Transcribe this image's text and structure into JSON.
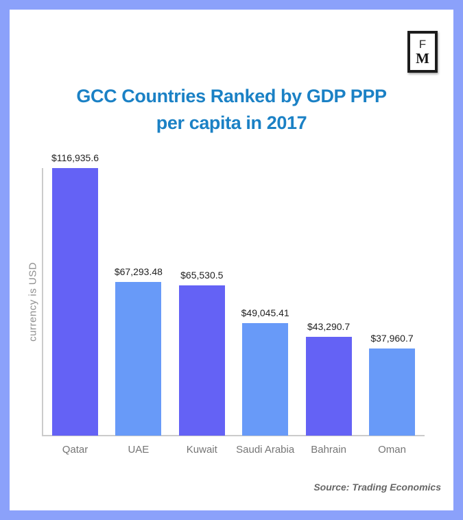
{
  "theme": {
    "frame_border": "#8ba1fa",
    "background": "#ffffff",
    "title_color": "#1b81c5",
    "axis_color": "#cbcbcb",
    "value_label_color": "#222222",
    "category_label_color": "#757575",
    "ylabel_color": "#8f8f8f",
    "source_color": "#666666",
    "bar_purple": "#6462f5",
    "bar_blue": "#689af8"
  },
  "logo": {
    "top_letter": "F",
    "bottom_letter": "M"
  },
  "title": {
    "line1": "GCC Countries Ranked by GDP PPP",
    "line2": "per capita in 2017"
  },
  "chart_data": {
    "type": "bar",
    "title": "GCC Countries Ranked by GDP PPP per capita in 2017",
    "categories": [
      "Qatar",
      "UAE",
      "Kuwait",
      "Saudi Arabia",
      "Bahrain",
      "Oman"
    ],
    "values": [
      116935.6,
      67293.48,
      65530.5,
      49045.41,
      43290.7,
      37960.7
    ],
    "value_labels": [
      "$116,935.6",
      "$67,293.48",
      "$65,530.5",
      "$49,045.41",
      "$43,290.7",
      "$37,960.7"
    ],
    "bar_colors": [
      "#6462f5",
      "#689af8",
      "#6462f5",
      "#689af8",
      "#6462f5",
      "#689af8"
    ],
    "xlabel": "",
    "ylabel": "currency is USD",
    "ylim": [
      0,
      116935.6
    ],
    "grid": false,
    "legend": false
  },
  "footer": {
    "source": "Source: Trading Economics"
  }
}
